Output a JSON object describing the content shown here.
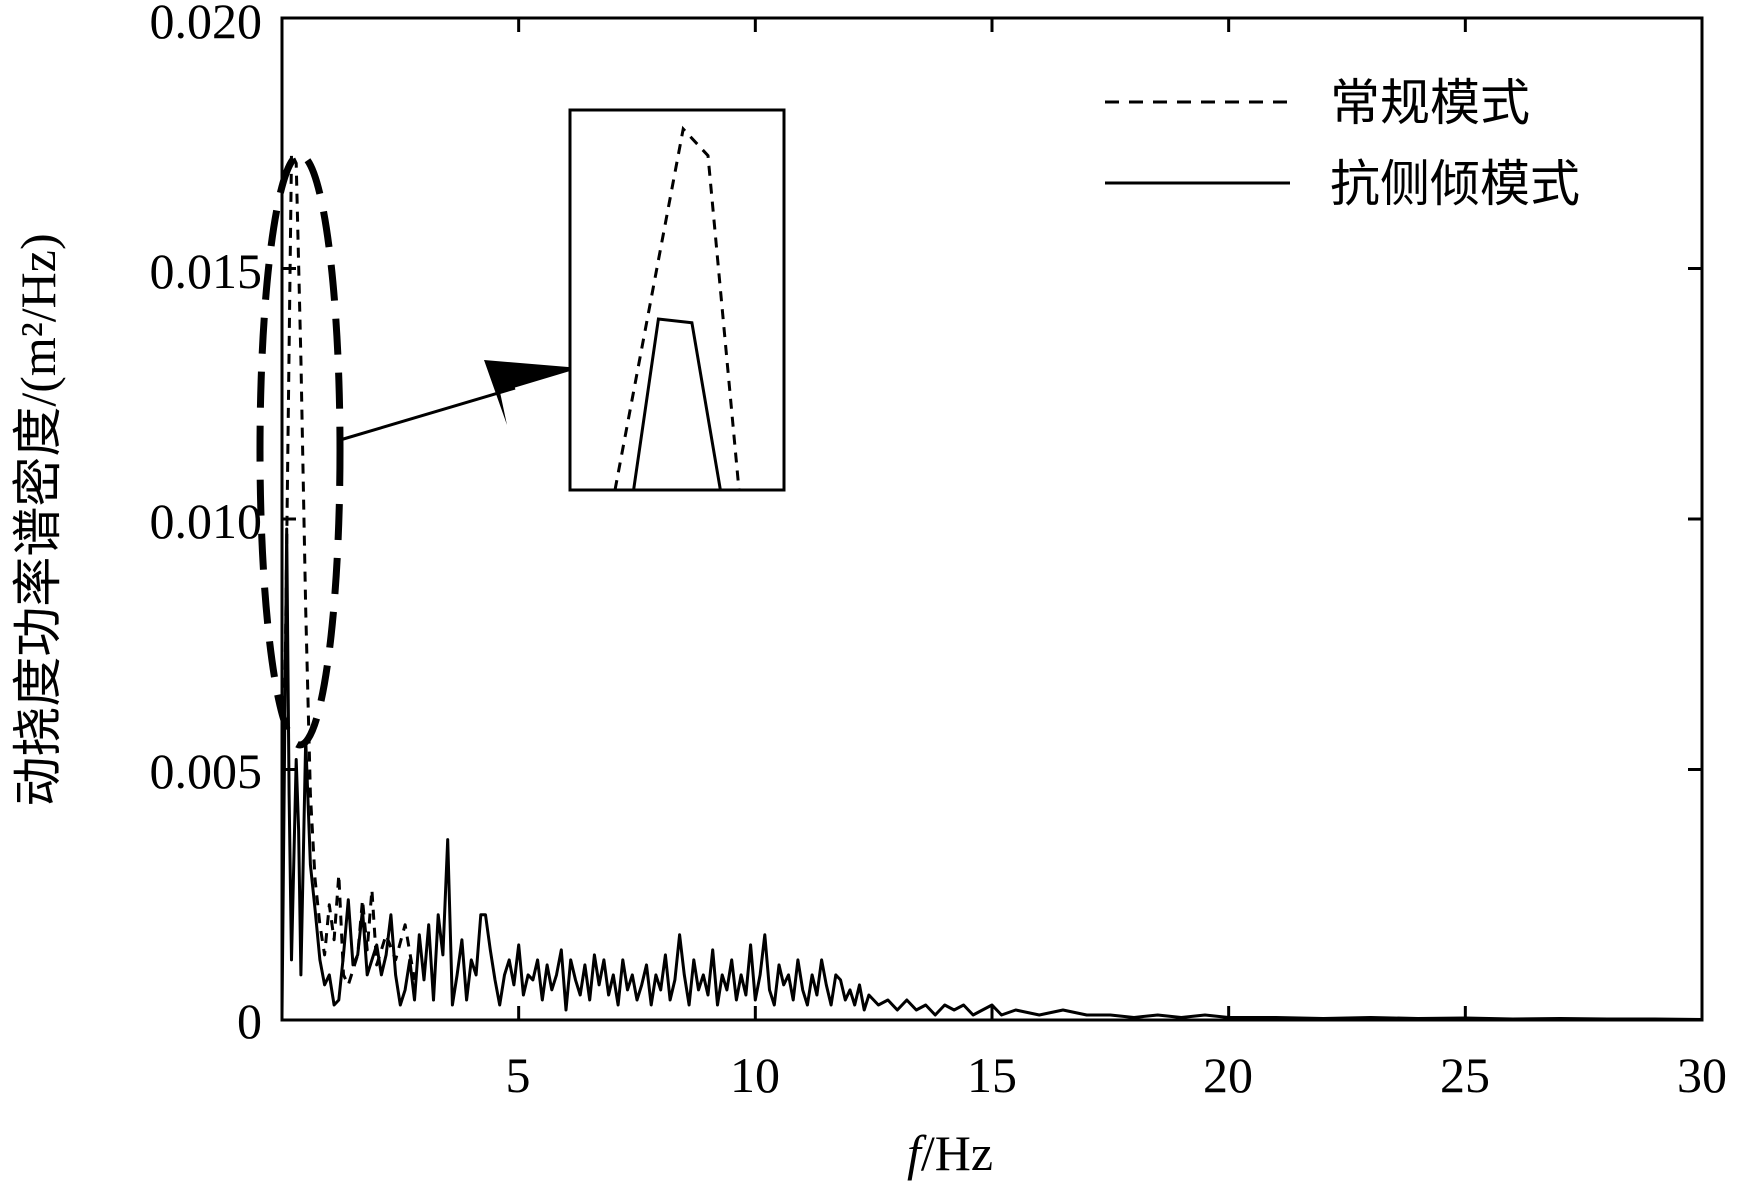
{
  "chart_data": {
    "type": "line",
    "xlabel_italic": "f",
    "xlabel_rest": "/Hz",
    "ylabel": "动挠度功率谱密度/(m²/Hz)",
    "xlim": [
      0,
      30
    ],
    "ylim": [
      0,
      0.02
    ],
    "x_ticks": [
      5,
      10,
      15,
      20,
      25,
      30
    ],
    "x_tick_labels": [
      "5",
      "10",
      "15",
      "20",
      "25",
      "30"
    ],
    "y_ticks": [
      0,
      0.005,
      0.01,
      0.015,
      0.02
    ],
    "y_tick_labels": [
      "0",
      "0.005",
      "0.010",
      "0.015",
      "0.020"
    ],
    "grid": false,
    "legend_position": "top-right",
    "series": [
      {
        "name": "常规模式",
        "style": "dashed",
        "color": "#000000",
        "points": [
          [
            0,
            0.0016
          ],
          [
            0.1,
            0.0095
          ],
          [
            0.2,
            0.0173
          ],
          [
            0.3,
            0.0171
          ],
          [
            0.4,
            0.0132
          ],
          [
            0.5,
            0.0082
          ],
          [
            0.6,
            0.0045
          ],
          [
            0.7,
            0.0028
          ],
          [
            0.8,
            0.0019
          ],
          [
            0.9,
            0.0013
          ],
          [
            1.0,
            0.0023
          ],
          [
            1.1,
            0.0016
          ],
          [
            1.2,
            0.0029
          ],
          [
            1.3,
            0.0009
          ],
          [
            1.4,
            0.0007
          ],
          [
            1.6,
            0.0013
          ],
          [
            1.7,
            0.0024
          ],
          [
            1.8,
            0.0014
          ],
          [
            1.9,
            0.0026
          ],
          [
            2.0,
            0.0011
          ],
          [
            2.2,
            0.0017
          ],
          [
            2.4,
            0.0012
          ],
          [
            2.6,
            0.0019
          ],
          [
            2.8,
            0.0008
          ]
        ]
      },
      {
        "name": "抗侧倾模式",
        "style": "solid",
        "color": "#000000",
        "points": [
          [
            0,
            0.0001
          ],
          [
            0.1,
            0.0098
          ],
          [
            0.15,
            0.0045
          ],
          [
            0.2,
            0.0012
          ],
          [
            0.3,
            0.0052
          ],
          [
            0.35,
            0.0038
          ],
          [
            0.4,
            0.0009
          ],
          [
            0.5,
            0.0056
          ],
          [
            0.6,
            0.0031
          ],
          [
            0.7,
            0.0022
          ],
          [
            0.8,
            0.0012
          ],
          [
            0.9,
            0.0007
          ],
          [
            1.0,
            0.0009
          ],
          [
            1.1,
            0.0003
          ],
          [
            1.2,
            0.0004
          ],
          [
            1.3,
            0.0013
          ],
          [
            1.4,
            0.0024
          ],
          [
            1.5,
            0.0011
          ],
          [
            1.6,
            0.0013
          ],
          [
            1.7,
            0.0022
          ],
          [
            1.8,
            0.0009
          ],
          [
            1.9,
            0.0012
          ],
          [
            2.0,
            0.0015
          ],
          [
            2.1,
            0.0009
          ],
          [
            2.2,
            0.0013
          ],
          [
            2.3,
            0.0021
          ],
          [
            2.4,
            0.0009
          ],
          [
            2.5,
            0.0003
          ],
          [
            2.6,
            0.0006
          ],
          [
            2.7,
            0.0012
          ],
          [
            2.8,
            0.0004
          ],
          [
            2.9,
            0.0017
          ],
          [
            3.0,
            0.0008
          ],
          [
            3.1,
            0.0019
          ],
          [
            3.2,
            0.0004
          ],
          [
            3.3,
            0.0021
          ],
          [
            3.4,
            0.0013
          ],
          [
            3.5,
            0.0036
          ],
          [
            3.6,
            0.0003
          ],
          [
            3.7,
            0.0009
          ],
          [
            3.8,
            0.0016
          ],
          [
            3.9,
            0.0004
          ],
          [
            4.0,
            0.0012
          ],
          [
            4.1,
            0.0009
          ],
          [
            4.2,
            0.0021
          ],
          [
            4.3,
            0.0021
          ],
          [
            4.4,
            0.0014
          ],
          [
            4.5,
            0.0008
          ],
          [
            4.6,
            0.0003
          ],
          [
            4.7,
            0.0009
          ],
          [
            4.8,
            0.0012
          ],
          [
            4.9,
            0.0007
          ],
          [
            5.0,
            0.0015
          ],
          [
            5.1,
            0.0005
          ],
          [
            5.2,
            0.0009
          ],
          [
            5.3,
            0.0008
          ],
          [
            5.4,
            0.0012
          ],
          [
            5.5,
            0.0004
          ],
          [
            5.6,
            0.0011
          ],
          [
            5.7,
            0.0006
          ],
          [
            5.8,
            0.0009
          ],
          [
            5.9,
            0.0014
          ],
          [
            6.0,
            0.0002
          ],
          [
            6.1,
            0.0012
          ],
          [
            6.2,
            0.0008
          ],
          [
            6.3,
            0.0005
          ],
          [
            6.4,
            0.0011
          ],
          [
            6.5,
            0.0004
          ],
          [
            6.6,
            0.0013
          ],
          [
            6.7,
            0.0007
          ],
          [
            6.8,
            0.0012
          ],
          [
            6.9,
            0.0005
          ],
          [
            7.0,
            0.0009
          ],
          [
            7.1,
            0.0003
          ],
          [
            7.2,
            0.0012
          ],
          [
            7.3,
            0.0006
          ],
          [
            7.4,
            0.0009
          ],
          [
            7.5,
            0.0004
          ],
          [
            7.6,
            0.0007
          ],
          [
            7.7,
            0.0011
          ],
          [
            7.8,
            0.0003
          ],
          [
            7.9,
            0.0009
          ],
          [
            8.0,
            0.0006
          ],
          [
            8.1,
            0.0013
          ],
          [
            8.2,
            0.0004
          ],
          [
            8.3,
            0.0008
          ],
          [
            8.4,
            0.0017
          ],
          [
            8.5,
            0.0009
          ],
          [
            8.6,
            0.0003
          ],
          [
            8.7,
            0.0012
          ],
          [
            8.8,
            0.0006
          ],
          [
            8.9,
            0.0009
          ],
          [
            9.0,
            0.0005
          ],
          [
            9.1,
            0.0014
          ],
          [
            9.2,
            0.0003
          ],
          [
            9.3,
            0.0009
          ],
          [
            9.4,
            0.0006
          ],
          [
            9.5,
            0.0012
          ],
          [
            9.6,
            0.0004
          ],
          [
            9.7,
            0.0009
          ],
          [
            9.8,
            0.0005
          ],
          [
            9.9,
            0.0015
          ],
          [
            10.0,
            0.0004
          ],
          [
            10.1,
            0.0009
          ],
          [
            10.2,
            0.0017
          ],
          [
            10.3,
            0.0006
          ],
          [
            10.4,
            0.0003
          ],
          [
            10.5,
            0.0011
          ],
          [
            10.6,
            0.0007
          ],
          [
            10.7,
            0.0009
          ],
          [
            10.8,
            0.0004
          ],
          [
            10.9,
            0.0012
          ],
          [
            11.0,
            0.0006
          ],
          [
            11.1,
            0.0003
          ],
          [
            11.2,
            0.0009
          ],
          [
            11.3,
            0.0005
          ],
          [
            11.4,
            0.0012
          ],
          [
            11.5,
            0.0007
          ],
          [
            11.6,
            0.0003
          ],
          [
            11.7,
            0.0009
          ],
          [
            11.8,
            0.0008
          ],
          [
            11.9,
            0.0004
          ],
          [
            12.0,
            0.0006
          ],
          [
            12.1,
            0.0003
          ],
          [
            12.2,
            0.0007
          ],
          [
            12.3,
            0.0002
          ],
          [
            12.4,
            0.0005
          ],
          [
            12.6,
            0.0003
          ],
          [
            12.8,
            0.0004
          ],
          [
            13.0,
            0.0002
          ],
          [
            13.2,
            0.0004
          ],
          [
            13.4,
            0.0002
          ],
          [
            13.6,
            0.0003
          ],
          [
            13.8,
            0.0001
          ],
          [
            14.0,
            0.0003
          ],
          [
            14.2,
            0.0002
          ],
          [
            14.4,
            0.0003
          ],
          [
            14.6,
            0.0001
          ],
          [
            14.8,
            0.0002
          ],
          [
            15.0,
            0.0003
          ],
          [
            15.2,
            0.0001
          ],
          [
            15.5,
            0.0002
          ],
          [
            16.0,
            0.0001
          ],
          [
            16.5,
            0.0002
          ],
          [
            17.0,
            0.0001
          ],
          [
            17.5,
            0.0001
          ],
          [
            18.0,
            5e-05
          ],
          [
            18.5,
            0.0001
          ],
          [
            19.0,
            5e-05
          ],
          [
            19.5,
            0.0001
          ],
          [
            20.0,
            5e-05
          ],
          [
            21.0,
            5e-05
          ],
          [
            22.0,
            3e-05
          ],
          [
            23.0,
            5e-05
          ],
          [
            24.0,
            3e-05
          ],
          [
            25.0,
            4e-05
          ],
          [
            26.0,
            2e-05
          ],
          [
            27.0,
            3e-05
          ],
          [
            28.0,
            2e-05
          ],
          [
            29.0,
            2e-05
          ],
          [
            30.0,
            1e-05
          ]
        ]
      }
    ],
    "inset": {
      "series_points": [
        {
          "name": "常规模式",
          "points": [
            [
              0.0,
              0.0
            ],
            [
              0.55,
              0.95
            ],
            [
              0.75,
              0.88
            ],
            [
              1.0,
              0.0
            ]
          ]
        },
        {
          "name": "抗侧倾模式",
          "points": [
            [
              0.15,
              0.0
            ],
            [
              0.35,
              0.45
            ],
            [
              0.62,
              0.44
            ],
            [
              0.85,
              0.0
            ]
          ]
        }
      ]
    }
  }
}
